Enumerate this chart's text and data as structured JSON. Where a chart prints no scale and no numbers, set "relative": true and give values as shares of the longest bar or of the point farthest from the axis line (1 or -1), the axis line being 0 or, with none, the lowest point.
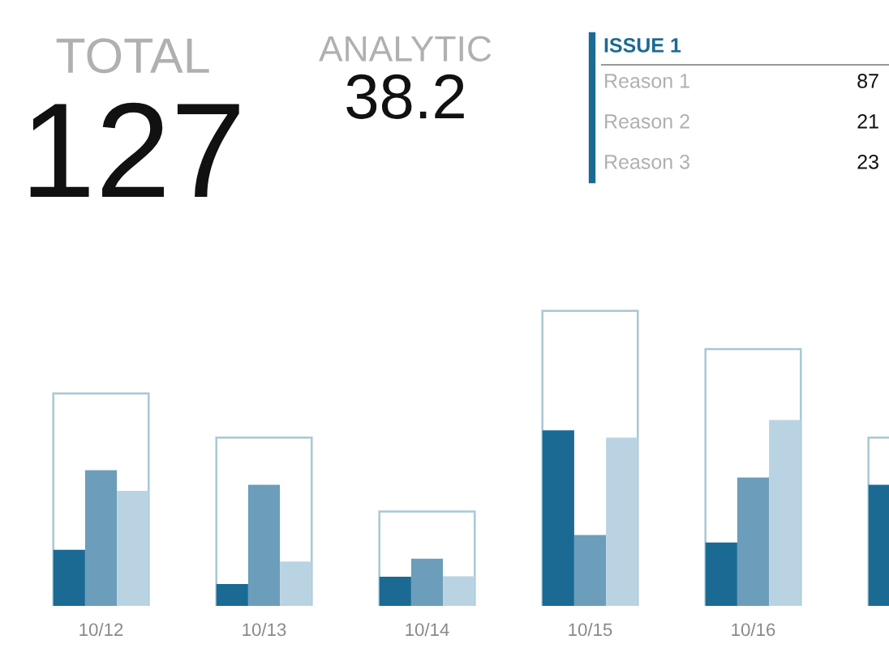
{
  "chart_data": [
    {
      "type": "other",
      "categories": [
        "TOTAL",
        "ANALYTIC"
      ],
      "values": [
        127,
        38.2
      ],
      "data_labels": true
    },
    {
      "type": "other",
      "title": "ISSUE 1",
      "color": "#1a6a94",
      "categories": [
        "Reason 1",
        "Reason 2",
        "Reason 3"
      ],
      "values": [
        87,
        21,
        23
      ],
      "data_labels": true
    },
    {
      "type": "bar",
      "relative": true,
      "categories": [
        "10/12",
        "10/13",
        "10/14",
        "10/15",
        "10/16",
        null
      ],
      "series": [
        {
          "color": "#a8c8d4",
          "values": [
            0.72,
            0.57,
            0.32,
            1.0,
            0.87,
            0.57
          ]
        },
        {
          "color": "#1a6a94",
          "values": [
            0.19,
            0.074,
            0.099,
            0.595,
            0.215,
            0.41
          ]
        },
        {
          "color": "#6c9dbb",
          "values": [
            0.46,
            0.41,
            0.16,
            0.24,
            0.435,
            null
          ]
        },
        {
          "color": "#bad3e2",
          "values": [
            0.39,
            0.15,
            0.1,
            0.57,
            0.63,
            null
          ]
        }
      ]
    }
  ]
}
